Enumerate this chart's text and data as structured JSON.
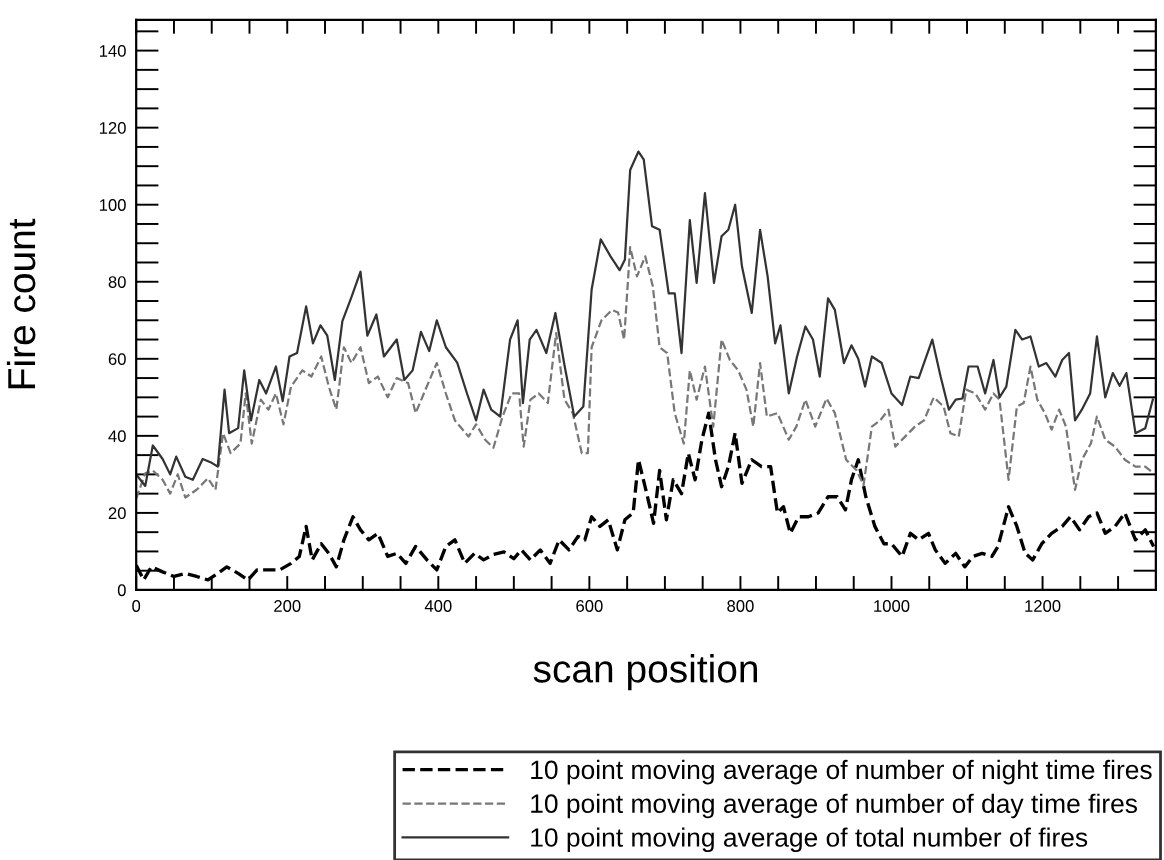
{
  "chart_data": {
    "type": "line",
    "xlabel": "scan position",
    "ylabel": "Fire count",
    "xlim": [
      0,
      1350
    ],
    "ylim": [
      0,
      148
    ],
    "xticks": [
      0,
      {
        "value": 50,
        "label": null
      },
      {
        "value": 100,
        "label": null
      },
      {
        "value": 150,
        "label": null
      },
      200,
      {
        "value": 250,
        "label": null
      },
      {
        "value": 300,
        "label": null
      },
      {
        "value": 350,
        "label": null
      },
      400,
      {
        "value": 450,
        "label": null
      },
      {
        "value": 500,
        "label": null
      },
      {
        "value": 550,
        "label": null
      },
      600,
      {
        "value": 650,
        "label": null
      },
      {
        "value": 700,
        "label": null
      },
      {
        "value": 750,
        "label": null
      },
      800,
      {
        "value": 850,
        "label": null
      },
      {
        "value": 900,
        "label": null
      },
      {
        "value": 950,
        "label": null
      },
      1000,
      {
        "value": 1050,
        "label": null
      },
      {
        "value": 1100,
        "label": null
      },
      {
        "value": 1150,
        "label": null
      },
      1200,
      {
        "value": 1250,
        "label": null
      },
      {
        "value": 1300,
        "label": null
      }
    ],
    "yticks": [
      0,
      {
        "value": 5,
        "label": null
      },
      {
        "value": 10,
        "label": null
      },
      {
        "value": 15,
        "label": null
      },
      20,
      {
        "value": 25,
        "label": null
      },
      {
        "value": 30,
        "label": null
      },
      {
        "value": 35,
        "label": null
      },
      40,
      {
        "value": 45,
        "label": null
      },
      {
        "value": 50,
        "label": null
      },
      {
        "value": 55,
        "label": null
      },
      60,
      {
        "value": 65,
        "label": null
      },
      {
        "value": 70,
        "label": null
      },
      {
        "value": 75,
        "label": null
      },
      80,
      {
        "value": 85,
        "label": null
      },
      {
        "value": 90,
        "label": null
      },
      {
        "value": 95,
        "label": null
      },
      100,
      {
        "value": 105,
        "label": null
      },
      {
        "value": 110,
        "label": null
      },
      {
        "value": 115,
        "label": null
      },
      120,
      {
        "value": 125,
        "label": null
      },
      {
        "value": 130,
        "label": null
      },
      {
        "value": 135,
        "label": null
      },
      140,
      {
        "value": 145,
        "label": null
      }
    ],
    "grid": false,
    "legend": "bottom right",
    "series": [
      {
        "name": "10 point moving average of number of night time fires",
        "color": "#000000",
        "line_style": "dashed",
        "x": [
          0,
          10,
          20,
          35,
          50,
          65,
          80,
          95,
          108,
          120,
          135,
          148,
          160,
          175,
          190,
          205,
          216,
          225,
          233,
          245,
          255,
          265,
          275,
          287,
          297,
          308,
          320,
          333,
          345,
          357,
          370,
          385,
          398,
          410,
          422,
          435,
          448,
          460,
          473,
          487,
          500,
          510,
          522,
          535,
          548,
          560,
          573,
          585,
          594,
          603,
          614,
          625,
          637,
          647,
          658,
          665,
          676,
          685,
          693,
          702,
          711,
          722,
          731,
          740,
          749,
          758,
          767,
          775,
          784,
          793,
          802,
          815,
          828,
          840,
          849,
          857,
          866,
          877,
          890,
          903,
          916,
          928,
          939,
          947,
          956,
          966,
          978,
          990,
          1000,
          1014,
          1025,
          1036,
          1049,
          1058,
          1071,
          1085,
          1097,
          1108,
          1120,
          1133,
          1141,
          1155,
          1166,
          1177,
          1187,
          1199,
          1212,
          1226,
          1237,
          1249,
          1261,
          1272,
          1283,
          1296,
          1309,
          1323,
          1336,
          1347
        ],
        "values": [
          6.4,
          2.6,
          6,
          4.7,
          3.5,
          4.3,
          3.5,
          2.6,
          4.3,
          6,
          4.3,
          2.6,
          5.2,
          5.2,
          5.2,
          6.9,
          8.7,
          16.5,
          7.8,
          12,
          9.5,
          6,
          13,
          19,
          15.6,
          13,
          14.7,
          8.7,
          9.5,
          6.9,
          11.3,
          7.8,
          5.2,
          11.3,
          13,
          6.9,
          9.5,
          7.8,
          9.2,
          9.9,
          8.1,
          10.4,
          7.8,
          10.4,
          6.9,
          13,
          10.4,
          13.9,
          13,
          19,
          16.5,
          18.2,
          10.4,
          18.2,
          20,
          33.8,
          25,
          17.3,
          31,
          18.2,
          28.6,
          25,
          35.5,
          28.6,
          39,
          45.9,
          33.8,
          26.8,
          32,
          40.7,
          27.7,
          33.8,
          32,
          32,
          20,
          21.6,
          14.7,
          19,
          19,
          20,
          24.2,
          24.2,
          20.8,
          28.6,
          33.8,
          24.2,
          16.5,
          12,
          12,
          8.7,
          14.7,
          13,
          14.7,
          10.4,
          6.9,
          9.5,
          6,
          8.7,
          9.5,
          8.7,
          11.3,
          21.6,
          16.5,
          9.5,
          7.8,
          12,
          14.7,
          16.5,
          19,
          15.6,
          19,
          20,
          14.7,
          16.5,
          20,
          13,
          15.6,
          11.3
        ]
      },
      {
        "name": "10 point moving average of number of day time fires",
        "color": "#777777",
        "line_style": "dashed",
        "x": [
          0,
          12,
          22,
          35,
          45,
          55,
          65,
          80,
          95,
          105,
          115,
          125,
          138,
          145,
          153,
          165,
          175,
          185,
          195,
          205,
          220,
          232,
          245,
          255,
          265,
          275,
          285,
          297,
          308,
          320,
          333,
          345,
          360,
          370,
          383,
          398,
          410,
          422,
          440,
          450,
          462,
          473,
          485,
          497,
          507,
          513,
          522,
          533,
          545,
          556,
          567,
          578,
          590,
          598,
          603,
          616,
          630,
          638,
          646,
          654,
          663,
          674,
          684,
          693,
          703,
          713,
          725,
          733,
          742,
          753,
          764,
          775,
          786,
          797,
          808,
          817,
          826,
          835,
          849,
          864,
          874,
          886,
          899,
          914,
          925,
          940,
          954,
          963,
          974,
          985,
          996,
          1005,
          1018,
          1031,
          1043,
          1056,
          1069,
          1078,
          1089,
          1099,
          1111,
          1124,
          1135,
          1143,
          1155,
          1166,
          1175,
          1184,
          1193,
          1203,
          1212,
          1222,
          1231,
          1243,
          1252,
          1264,
          1272,
          1283,
          1296,
          1309,
          1323,
          1336,
          1347
        ],
        "values": [
          23.7,
          30.3,
          31,
          28.6,
          25,
          30,
          24,
          26,
          29,
          26,
          40.7,
          35.5,
          38,
          51,
          38,
          49.4,
          46.8,
          51,
          43,
          52.8,
          57,
          55.4,
          60.6,
          52.8,
          46.8,
          63,
          58.9,
          63,
          53.7,
          55.4,
          50,
          55,
          53.7,
          45.9,
          52,
          58.9,
          51,
          44,
          39.8,
          43,
          39,
          36.9,
          45,
          51,
          51,
          37.2,
          49.4,
          51,
          48.5,
          66.7,
          49.4,
          45.9,
          35.5,
          35.5,
          63,
          70,
          72.7,
          72,
          65,
          89,
          81.4,
          86.6,
          78.8,
          63,
          61.5,
          45.9,
          38,
          57,
          49.4,
          58,
          42.4,
          65,
          59.7,
          57,
          52,
          42.4,
          58.9,
          45,
          45.9,
          39,
          42.4,
          49.4,
          42.4,
          49.7,
          45.9,
          33.8,
          31,
          27.2,
          42.4,
          44,
          46.8,
          37.2,
          39.8,
          42.4,
          44,
          50,
          47.6,
          40.7,
          39.8,
          52,
          51,
          46.8,
          51,
          49.4,
          28.6,
          47.6,
          48.5,
          58,
          49.4,
          45.9,
          41.6,
          46.8,
          42.4,
          26,
          33.8,
          38,
          45,
          39,
          37.2,
          33.8,
          32,
          32,
          30.3
        ]
      },
      {
        "name": "10 point moving average of total number of fires",
        "color": "#333333",
        "line_style": "solid",
        "x": [
          0,
          12,
          22,
          35,
          45,
          53,
          65,
          75,
          88,
          100,
          108,
          117,
          123,
          135,
          143,
          152,
          163,
          172,
          185,
          194,
          203,
          213,
          225,
          234,
          244,
          253,
          263,
          273,
          285,
          297,
          306,
          318,
          328,
          345,
          355,
          366,
          377,
          388,
          398,
          410,
          425,
          438,
          450,
          460,
          470,
          482,
          495,
          505,
          512,
          521,
          530,
          543,
          555,
          567,
          580,
          592,
          603,
          615,
          628,
          640,
          647,
          654,
          665,
          672,
          683,
          693,
          705,
          713,
          722,
          733,
          742,
          753,
          765,
          775,
          784,
          793,
          802,
          815,
          826,
          836,
          846,
          853,
          864,
          875,
          886,
          896,
          905,
          916,
          925,
          937,
          947,
          956,
          965,
          974,
          987,
          1000,
          1014,
          1025,
          1036,
          1054,
          1065,
          1076,
          1085,
          1094,
          1102,
          1114,
          1124,
          1135,
          1143,
          1152,
          1164,
          1173,
          1184,
          1195,
          1205,
          1217,
          1226,
          1235,
          1243,
          1252,
          1263,
          1272,
          1283,
          1293,
          1302,
          1311,
          1323,
          1336,
          1346
        ],
        "values": [
          30,
          27,
          37.5,
          34,
          30,
          34.6,
          29.4,
          28.6,
          34,
          33,
          32,
          52,
          40.7,
          42,
          57,
          44,
          54.5,
          51,
          58,
          49,
          60.6,
          61.5,
          73.6,
          64,
          68.7,
          66,
          54.5,
          69.8,
          76,
          82.6,
          66,
          71.5,
          60.6,
          65,
          54.5,
          57,
          67,
          62,
          70,
          63,
          59,
          51,
          44,
          52,
          46.8,
          45,
          65,
          70,
          48.5,
          65,
          67.5,
          61.5,
          71.9,
          58.4,
          45,
          47.6,
          78,
          91,
          86.6,
          83,
          85.7,
          109,
          113.8,
          111.7,
          94.4,
          93.5,
          77,
          77,
          61.5,
          96,
          79.7,
          103,
          79.7,
          91.8,
          93.5,
          100,
          84,
          71.9,
          93.5,
          81.4,
          64,
          68.7,
          51,
          60.6,
          68.4,
          65,
          55.4,
          75.7,
          72.7,
          58.9,
          63.5,
          60,
          52.8,
          60.6,
          58.9,
          51,
          48,
          55.4,
          55,
          65,
          55.4,
          46.8,
          49.4,
          49.7,
          58,
          58,
          51,
          59.7,
          50,
          52.8,
          67.5,
          65,
          65.8,
          58,
          58.9,
          55.4,
          59.7,
          61.5,
          44,
          46.8,
          51,
          65.8,
          50,
          56.3,
          53,
          56.3,
          40.7,
          42,
          49.4
        ]
      }
    ]
  }
}
